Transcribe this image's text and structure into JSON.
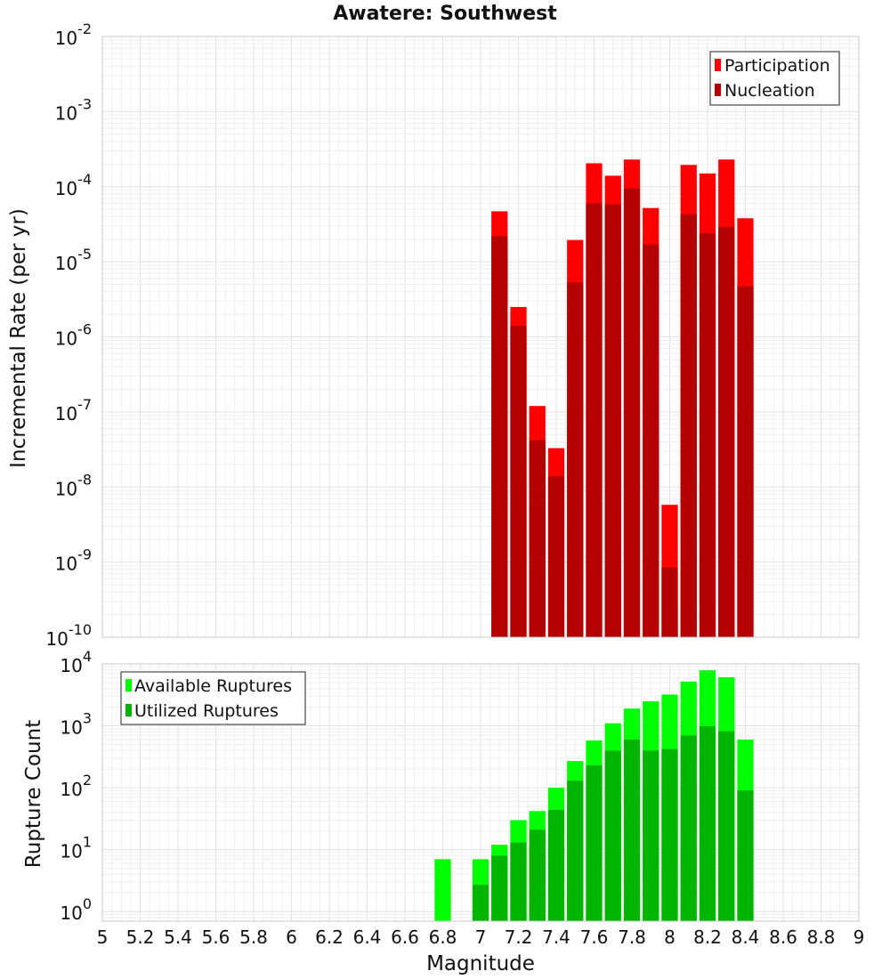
{
  "title": "Awatere: Southwest",
  "chart_data": [
    {
      "type": "bar",
      "yscale": "log",
      "ylabel": "Incremental Rate (per yr)",
      "ylim": [
        1e-10,
        0.01
      ],
      "xlim": [
        5,
        9
      ],
      "bin_width": 0.1,
      "x": [
        7.1,
        7.2,
        7.3,
        7.4,
        7.5,
        7.6,
        7.7,
        7.8,
        7.9,
        8.0,
        8.1,
        8.2,
        8.3,
        8.4
      ],
      "series": [
        {
          "name": "Participation",
          "color": "#ff0000",
          "values": [
            4.7e-05,
            2.5e-06,
            1.2e-07,
            3.3e-08,
            1.95e-05,
            0.000205,
            0.00014,
            0.00023,
            5.2e-05,
            5.8e-09,
            0.000195,
            0.00015,
            0.00023,
            3.8e-05
          ]
        },
        {
          "name": "Nucleation",
          "color": "#b40000",
          "values": [
            2.2e-05,
            1.4e-06,
            4.2e-08,
            1.4e-08,
            5.3e-06,
            6e-05,
            5.8e-05,
            9.5e-05,
            1.7e-05,
            8.5e-10,
            4.3e-05,
            2.4e-05,
            2.9e-05,
            4.7e-06
          ]
        }
      ],
      "ytick_labels": [
        {
          "base": "10",
          "exp": "-10"
        },
        {
          "base": "10",
          "exp": "-9"
        },
        {
          "base": "10",
          "exp": "-8"
        },
        {
          "base": "10",
          "exp": "-7"
        },
        {
          "base": "10",
          "exp": "-6"
        },
        {
          "base": "10",
          "exp": "-5"
        },
        {
          "base": "10",
          "exp": "-4"
        },
        {
          "base": "10",
          "exp": "-3"
        },
        {
          "base": "10",
          "exp": "-2"
        }
      ],
      "legend_position": "top-right"
    },
    {
      "type": "bar",
      "yscale": "log",
      "ylabel": "Rupture Count",
      "xlabel": "Magnitude",
      "ylim": [
        0.7,
        10000
      ],
      "xlim": [
        5,
        9
      ],
      "bin_width": 0.1,
      "x": [
        6.8,
        7.0,
        7.1,
        7.2,
        7.3,
        7.4,
        7.5,
        7.6,
        7.7,
        7.8,
        7.9,
        8.0,
        8.1,
        8.2,
        8.3,
        8.4
      ],
      "series": [
        {
          "name": "Available Ruptures",
          "color": "#00ff00",
          "values": [
            7,
            7,
            12,
            30,
            42,
            100,
            270,
            580,
            1100,
            1900,
            2500,
            3200,
            5200,
            7900,
            6100,
            600
          ]
        },
        {
          "name": "Utilized Ruptures",
          "color": "#00b400",
          "values": [
            null,
            2.7,
            8,
            13,
            21,
            44,
            130,
            230,
            400,
            600,
            400,
            420,
            700,
            980,
            820,
            90
          ]
        }
      ],
      "ytick_labels": [
        {
          "base": "10",
          "exp": "0"
        },
        {
          "base": "10",
          "exp": "1"
        },
        {
          "base": "10",
          "exp": "2"
        },
        {
          "base": "10",
          "exp": "3"
        },
        {
          "base": "10",
          "exp": "4"
        }
      ],
      "xtick_labels": [
        "5",
        "5.2",
        "5.4",
        "5.6",
        "5.8",
        "6",
        "6.2",
        "6.4",
        "6.6",
        "6.8",
        "7",
        "7.2",
        "7.4",
        "7.6",
        "7.8",
        "8",
        "8.2",
        "8.4",
        "8.6",
        "8.8",
        "9"
      ],
      "legend_position": "top-left"
    }
  ]
}
